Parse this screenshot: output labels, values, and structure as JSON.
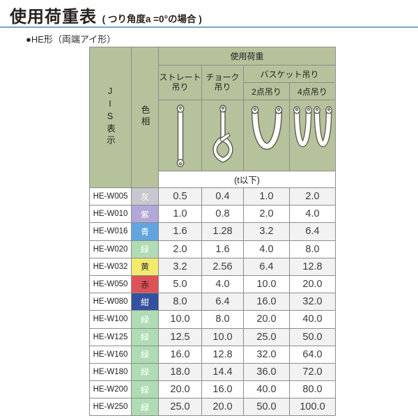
{
  "page": {
    "title": "使用荷重表",
    "title_suffix": "( つり角度a =0°の場合 )",
    "section_label": "●HE形（両端アイ形）"
  },
  "table": {
    "header": {
      "jis": "JIS表示",
      "color": "色相",
      "load": "使用荷重",
      "straight": "ストレート\n吊り",
      "choker": "チョーク\n吊り",
      "basket": "バスケット吊り",
      "basket2": "2点吊り",
      "basket4": "4点吊り",
      "unit": "(t以下)"
    },
    "icons": {
      "straight": "straight-hitch-icon",
      "choker": "choker-hitch-icon",
      "basket2": "basket-2point-icon",
      "basket4": "basket-4point-icon"
    },
    "rows": [
      {
        "jis": "HE-W005",
        "color": "灰",
        "color_bg": "#c7c7cf",
        "color_text": "#ffffff",
        "values": [
          "0.5",
          "0.4",
          "1.0",
          "2.0"
        ]
      },
      {
        "jis": "HE-W010",
        "color": "紫",
        "color_bg": "#b1a7d8",
        "color_text": "#ffffff",
        "values": [
          "1.0",
          "0.8",
          "2.0",
          "4.0"
        ]
      },
      {
        "jis": "HE-W016",
        "color": "青",
        "color_bg": "#61a4de",
        "color_text": "#ffffff",
        "values": [
          "1.6",
          "1.28",
          "3.2",
          "6.4"
        ]
      },
      {
        "jis": "HE-W020",
        "color": "緑",
        "color_bg": "#afdcb3",
        "color_text": "#ffffff",
        "values": [
          "2.0",
          "1.6",
          "4.0",
          "8.0"
        ]
      },
      {
        "jis": "HE-W032",
        "color": "黄",
        "color_bg": "#f3e96d",
        "color_text": "#333333",
        "values": [
          "3.2",
          "2.56",
          "6.4",
          "12.8"
        ]
      },
      {
        "jis": "HE-W050",
        "color": "赤",
        "color_bg": "#dd5257",
        "color_text": "#332222",
        "values": [
          "5.0",
          "4.0",
          "10.0",
          "20.0"
        ]
      },
      {
        "jis": "HE-W080",
        "color": "紺",
        "color_bg": "#34519f",
        "color_text": "#ffffff",
        "values": [
          "8.0",
          "6.4",
          "16.0",
          "32.0"
        ]
      },
      {
        "jis": "HE-W100",
        "color": "緑",
        "color_bg": "#afdcb3",
        "color_text": "#ffffff",
        "values": [
          "10.0",
          "8.0",
          "20.0",
          "40.0"
        ]
      },
      {
        "jis": "HE-W125",
        "color": "緑",
        "color_bg": "#afdcb3",
        "color_text": "#ffffff",
        "values": [
          "12.5",
          "10.0",
          "25.0",
          "50.0"
        ]
      },
      {
        "jis": "HE-W160",
        "color": "緑",
        "color_bg": "#afdcb3",
        "color_text": "#ffffff",
        "values": [
          "16.0",
          "12.8",
          "32.0",
          "64.0"
        ]
      },
      {
        "jis": "HE-W180",
        "color": "緑",
        "color_bg": "#afdcb3",
        "color_text": "#ffffff",
        "values": [
          "18.0",
          "14.4",
          "36.0",
          "72.0"
        ]
      },
      {
        "jis": "HE-W200",
        "color": "緑",
        "color_bg": "#afdcb3",
        "color_text": "#ffffff",
        "values": [
          "20.0",
          "16.0",
          "40.0",
          "80.0"
        ]
      },
      {
        "jis": "HE-W250",
        "color": "緑",
        "color_bg": "#afdcb3",
        "color_text": "#ffffff",
        "values": [
          "25.0",
          "20.0",
          "50.0",
          "100.0"
        ]
      }
    ]
  },
  "colors": {
    "header_bg": "#b5c29b",
    "title_rule": "#7aa3c6",
    "grid_line": "#8c8c8c",
    "row_shade": "#f2f2f2"
  }
}
